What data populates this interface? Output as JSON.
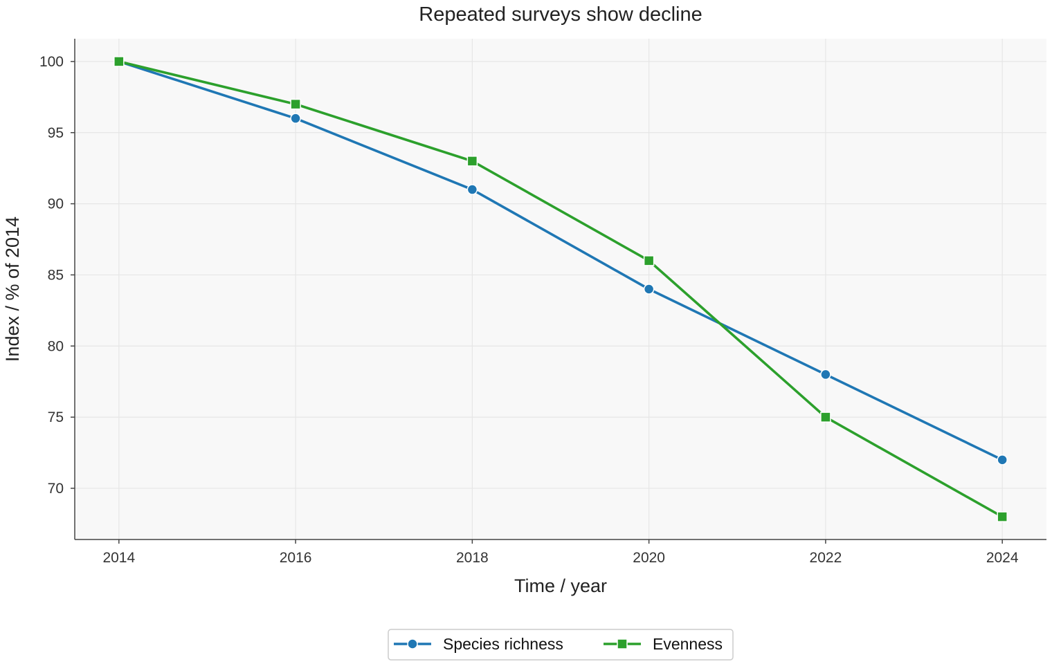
{
  "chart_data": {
    "type": "line",
    "title": "Repeated surveys show decline",
    "xlabel": "Time / year",
    "ylabel": "Index / % of 2014",
    "x": [
      2014,
      2016,
      2018,
      2020,
      2022,
      2024
    ],
    "xlim": [
      2013.5,
      2024.5
    ],
    "ylim": [
      66.4,
      101.6
    ],
    "xticks": [
      2014,
      2016,
      2018,
      2020,
      2022,
      2024
    ],
    "yticks": [
      70,
      75,
      80,
      85,
      90,
      95,
      100
    ],
    "grid": true,
    "legend_position": "bottom-center",
    "series": [
      {
        "name": "Species richness",
        "values": [
          100,
          96,
          91,
          84,
          78,
          72
        ],
        "color": "#1f77b4",
        "marker": "circle"
      },
      {
        "name": "Evenness",
        "values": [
          100,
          97,
          93,
          86,
          75,
          68
        ],
        "color": "#2ca02c",
        "marker": "square"
      }
    ]
  },
  "colors": {
    "plot_background": "#f8f8f8",
    "grid": "#e6e6e6",
    "axis": "#444444"
  }
}
